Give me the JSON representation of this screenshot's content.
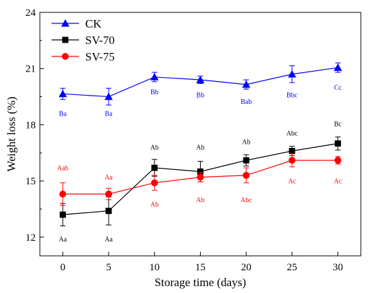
{
  "chart_data": {
    "type": "line",
    "title": "",
    "xlabel": "Storage time (days)",
    "ylabel": "Weight loss (%)",
    "xlim": [
      -2.5,
      32.5
    ],
    "ylim": [
      11,
      24
    ],
    "xticks": [
      0,
      5,
      10,
      15,
      20,
      25,
      30
    ],
    "yticks": [
      12,
      15,
      18,
      21,
      24
    ],
    "x": [
      0,
      5,
      10,
      15,
      20,
      25,
      30
    ],
    "legend_position": "top-left",
    "grid": false,
    "series": [
      {
        "name": "CK",
        "color": "#0000ff",
        "marker": "triangle",
        "values": [
          19.65,
          19.5,
          20.55,
          20.4,
          20.15,
          20.7,
          21.05
        ],
        "errors": [
          0.3,
          0.45,
          0.25,
          0.2,
          0.25,
          0.45,
          0.25
        ],
        "labels": [
          "Ba",
          "Ba",
          "Bb",
          "Bb",
          "Bab",
          "Bbc",
          "Cc"
        ],
        "label_y": [
          18.6,
          18.6,
          19.75,
          19.6,
          19.25,
          19.6,
          20.0
        ]
      },
      {
        "name": "SV-70",
        "color": "#000000",
        "marker": "square",
        "values": [
          13.2,
          13.4,
          15.7,
          15.5,
          16.1,
          16.6,
          17.0
        ],
        "errors": [
          0.6,
          0.75,
          0.45,
          0.55,
          0.3,
          0.25,
          0.35
        ],
        "labels": [
          "Aa",
          "Aa",
          "Ab",
          "Ab",
          "Ab",
          "Abc",
          "Bc"
        ],
        "label_y": [
          11.9,
          11.9,
          16.8,
          16.8,
          17.1,
          17.55,
          18.05
        ]
      },
      {
        "name": "SV-75",
        "color": "#ff0000",
        "marker": "circle",
        "values": [
          14.3,
          14.3,
          14.9,
          15.2,
          15.3,
          16.1,
          16.1
        ],
        "errors": [
          0.6,
          0.3,
          0.4,
          0.25,
          0.4,
          0.35,
          0.2
        ],
        "labels": [
          "Aab",
          "Aa",
          "Ab",
          "Ab",
          "Abc",
          "Ac",
          "Ac"
        ],
        "label_y": [
          15.7,
          15.2,
          13.75,
          14.0,
          14.0,
          15.0,
          15.0
        ]
      }
    ]
  }
}
